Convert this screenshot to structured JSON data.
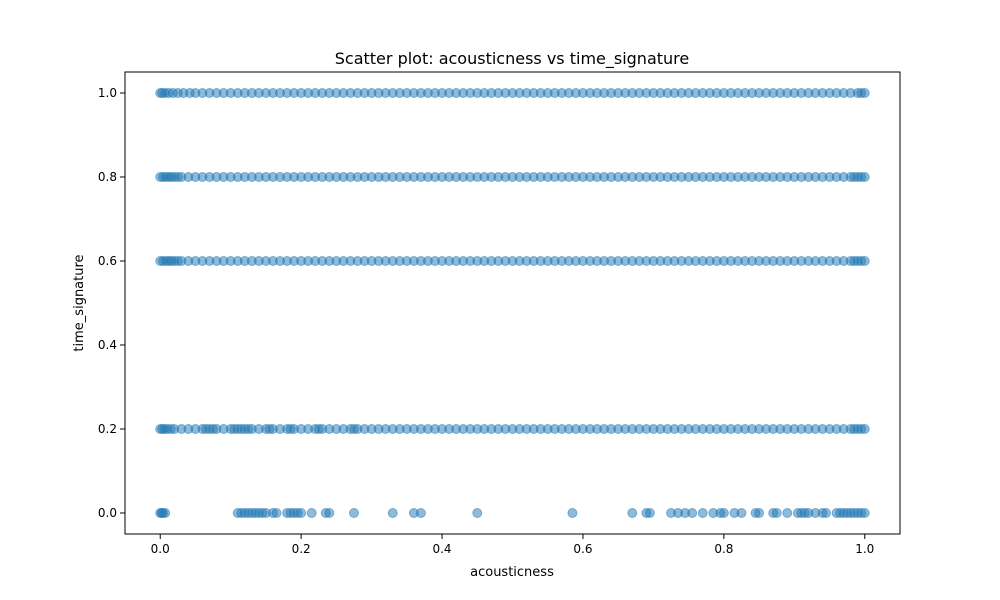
{
  "chart_data": {
    "type": "scatter",
    "title": "Scatter plot: acousticness vs time_signature",
    "xlabel": "acousticness",
    "ylabel": "time_signature",
    "xlim": [
      -0.05,
      1.05
    ],
    "ylim": [
      -0.05,
      1.05
    ],
    "xticks": [
      0.0,
      0.2,
      0.4,
      0.6,
      0.8,
      1.0
    ],
    "yticks": [
      0.0,
      0.2,
      0.4,
      0.6,
      0.8,
      1.0
    ],
    "xtick_labels": [
      "0.0",
      "0.2",
      "0.4",
      "0.6",
      "0.8",
      "1.0"
    ],
    "ytick_labels": [
      "0.0",
      "0.2",
      "0.4",
      "0.6",
      "0.8",
      "1.0"
    ],
    "grid": false,
    "color": "#1f77b4",
    "alpha": 0.5,
    "series": [
      {
        "points": [
          {
            "y": 1.0,
            "x": [
              0.0,
              0.003,
              0.007,
              0.012,
              0.018,
              0.025,
              0.033,
              0.042,
              0.05,
              0.06,
              0.07,
              0.08,
              0.09,
              0.1,
              0.11,
              0.12,
              0.13,
              0.14,
              0.15,
              0.16,
              0.17,
              0.18,
              0.19,
              0.2,
              0.21,
              0.22,
              0.23,
              0.24,
              0.25,
              0.26,
              0.27,
              0.28,
              0.29,
              0.3,
              0.31,
              0.32,
              0.33,
              0.34,
              0.35,
              0.36,
              0.37,
              0.38,
              0.39,
              0.4,
              0.41,
              0.42,
              0.43,
              0.44,
              0.45,
              0.46,
              0.47,
              0.48,
              0.49,
              0.5,
              0.51,
              0.52,
              0.53,
              0.54,
              0.55,
              0.56,
              0.57,
              0.58,
              0.59,
              0.6,
              0.61,
              0.62,
              0.63,
              0.64,
              0.65,
              0.66,
              0.67,
              0.68,
              0.69,
              0.7,
              0.71,
              0.72,
              0.73,
              0.74,
              0.75,
              0.76,
              0.77,
              0.78,
              0.79,
              0.8,
              0.81,
              0.82,
              0.83,
              0.84,
              0.85,
              0.86,
              0.87,
              0.88,
              0.89,
              0.9,
              0.91,
              0.92,
              0.93,
              0.94,
              0.95,
              0.96,
              0.97,
              0.98,
              0.99,
              0.995,
              1.0
            ]
          },
          {
            "y": 0.8,
            "x": [
              0.0,
              0.004,
              0.008,
              0.012,
              0.016,
              0.02,
              0.025,
              0.03,
              0.04,
              0.05,
              0.06,
              0.07,
              0.08,
              0.09,
              0.1,
              0.11,
              0.12,
              0.13,
              0.14,
              0.15,
              0.16,
              0.17,
              0.18,
              0.19,
              0.2,
              0.21,
              0.22,
              0.23,
              0.24,
              0.25,
              0.26,
              0.27,
              0.28,
              0.29,
              0.3,
              0.31,
              0.32,
              0.33,
              0.34,
              0.35,
              0.36,
              0.37,
              0.38,
              0.39,
              0.4,
              0.41,
              0.42,
              0.43,
              0.44,
              0.45,
              0.46,
              0.47,
              0.48,
              0.49,
              0.5,
              0.51,
              0.52,
              0.53,
              0.54,
              0.55,
              0.56,
              0.57,
              0.58,
              0.59,
              0.6,
              0.61,
              0.62,
              0.63,
              0.64,
              0.65,
              0.66,
              0.67,
              0.68,
              0.69,
              0.7,
              0.71,
              0.72,
              0.73,
              0.74,
              0.75,
              0.76,
              0.77,
              0.78,
              0.79,
              0.8,
              0.81,
              0.82,
              0.83,
              0.84,
              0.85,
              0.86,
              0.87,
              0.88,
              0.89,
              0.9,
              0.91,
              0.92,
              0.93,
              0.94,
              0.95,
              0.96,
              0.97,
              0.98,
              0.985,
              0.99,
              0.995,
              1.0
            ]
          },
          {
            "y": 0.6,
            "x": [
              0.0,
              0.004,
              0.008,
              0.012,
              0.016,
              0.02,
              0.025,
              0.03,
              0.04,
              0.05,
              0.06,
              0.07,
              0.08,
              0.09,
              0.1,
              0.11,
              0.12,
              0.13,
              0.14,
              0.15,
              0.16,
              0.17,
              0.18,
              0.19,
              0.2,
              0.21,
              0.22,
              0.23,
              0.24,
              0.25,
              0.26,
              0.27,
              0.28,
              0.29,
              0.3,
              0.31,
              0.32,
              0.33,
              0.34,
              0.35,
              0.36,
              0.37,
              0.38,
              0.39,
              0.4,
              0.41,
              0.42,
              0.43,
              0.44,
              0.45,
              0.46,
              0.47,
              0.48,
              0.49,
              0.5,
              0.51,
              0.52,
              0.53,
              0.54,
              0.55,
              0.56,
              0.57,
              0.58,
              0.59,
              0.6,
              0.61,
              0.62,
              0.63,
              0.64,
              0.65,
              0.66,
              0.67,
              0.68,
              0.69,
              0.7,
              0.71,
              0.72,
              0.73,
              0.74,
              0.75,
              0.76,
              0.77,
              0.78,
              0.79,
              0.8,
              0.81,
              0.82,
              0.83,
              0.84,
              0.85,
              0.86,
              0.87,
              0.88,
              0.89,
              0.9,
              0.91,
              0.92,
              0.93,
              0.94,
              0.95,
              0.96,
              0.97,
              0.98,
              0.985,
              0.99,
              0.995,
              1.0
            ]
          },
          {
            "y": 0.2,
            "x": [
              0.0,
              0.003,
              0.006,
              0.01,
              0.015,
              0.02,
              0.03,
              0.04,
              0.05,
              0.06,
              0.065,
              0.07,
              0.075,
              0.08,
              0.09,
              0.1,
              0.105,
              0.11,
              0.115,
              0.12,
              0.125,
              0.13,
              0.14,
              0.15,
              0.155,
              0.16,
              0.17,
              0.18,
              0.185,
              0.19,
              0.2,
              0.21,
              0.22,
              0.225,
              0.23,
              0.24,
              0.25,
              0.26,
              0.27,
              0.275,
              0.28,
              0.29,
              0.3,
              0.31,
              0.32,
              0.33,
              0.34,
              0.35,
              0.36,
              0.37,
              0.38,
              0.39,
              0.4,
              0.41,
              0.42,
              0.43,
              0.44,
              0.45,
              0.46,
              0.47,
              0.48,
              0.49,
              0.5,
              0.51,
              0.52,
              0.53,
              0.54,
              0.55,
              0.56,
              0.57,
              0.58,
              0.59,
              0.6,
              0.61,
              0.62,
              0.63,
              0.64,
              0.65,
              0.66,
              0.67,
              0.68,
              0.69,
              0.7,
              0.71,
              0.72,
              0.73,
              0.74,
              0.75,
              0.76,
              0.77,
              0.78,
              0.79,
              0.8,
              0.81,
              0.82,
              0.83,
              0.84,
              0.85,
              0.86,
              0.87,
              0.88,
              0.89,
              0.9,
              0.91,
              0.92,
              0.93,
              0.94,
              0.95,
              0.96,
              0.97,
              0.98,
              0.985,
              0.99,
              0.995,
              1.0
            ]
          },
          {
            "y": 0.0,
            "x": [
              0.0,
              0.002,
              0.004,
              0.007,
              0.11,
              0.115,
              0.12,
              0.125,
              0.13,
              0.135,
              0.14,
              0.145,
              0.15,
              0.16,
              0.165,
              0.18,
              0.185,
              0.19,
              0.195,
              0.2,
              0.215,
              0.235,
              0.24,
              0.275,
              0.33,
              0.36,
              0.37,
              0.45,
              0.585,
              0.67,
              0.69,
              0.695,
              0.725,
              0.735,
              0.745,
              0.755,
              0.77,
              0.785,
              0.795,
              0.8,
              0.815,
              0.825,
              0.845,
              0.85,
              0.87,
              0.875,
              0.89,
              0.905,
              0.91,
              0.915,
              0.92,
              0.93,
              0.94,
              0.945,
              0.96,
              0.965,
              0.97,
              0.975,
              0.98,
              0.985,
              0.99,
              0.995,
              1.0
            ]
          }
        ]
      }
    ]
  }
}
